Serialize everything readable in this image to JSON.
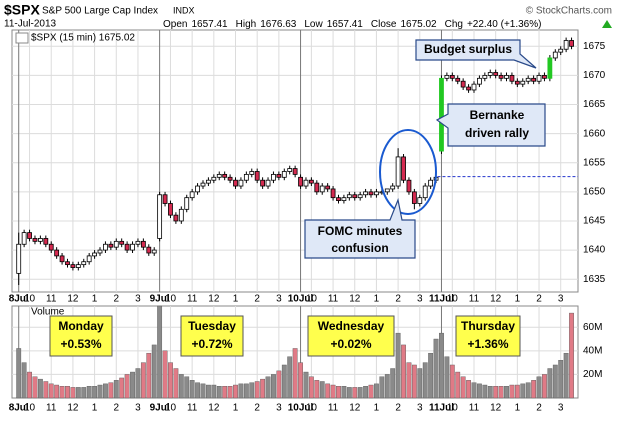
{
  "header": {
    "symbol": "$SPX",
    "name": "S&P 500 Large Cap Index",
    "exchange": "INDX",
    "date": "11-Jul-2013",
    "copyright": "© StockCharts.com",
    "quote": [
      {
        "label": "Open",
        "value": "1657.41"
      },
      {
        "label": "High",
        "value": "1676.63"
      },
      {
        "label": "Low",
        "value": "1657.41"
      },
      {
        "label": "Close",
        "value": "1675.02"
      },
      {
        "label": "Chg",
        "value": "+22.40 (+1.36%)"
      }
    ]
  },
  "annotations": {
    "budget": "Budget surplus",
    "bernanke": [
      "Bernanke",
      "driven rally"
    ],
    "fomc": [
      "FOMC minutes",
      "confusion"
    ]
  },
  "day_notes": [
    {
      "day": "Monday",
      "change": "+0.53%"
    },
    {
      "day": "Tuesday",
      "change": "+0.72%"
    },
    {
      "day": "Wednesday",
      "change": "+0.02%"
    },
    {
      "day": "Thursday",
      "change": "+1.36%"
    }
  ],
  "chart_data": [
    {
      "type": "candlestick",
      "legend": "$SPX (15 min) 1675.02",
      "up_color": "#ffffff",
      "down_color": "#d42a50",
      "highlight_color": "#22c822",
      "highlight": [
        78,
        98
      ],
      "prev_close": 1652.62,
      "prev_close_color": "#2233cc",
      "categories": [
        "8Jul",
        null,
        "10",
        null,
        null,
        null,
        "11",
        null,
        null,
        null,
        "12",
        null,
        null,
        null,
        "1",
        null,
        null,
        null,
        "2",
        null,
        null,
        null,
        "3",
        null,
        null,
        null,
        "9Jul",
        null,
        "10",
        null,
        null,
        null,
        "11",
        null,
        null,
        null,
        "12",
        null,
        null,
        null,
        "1",
        null,
        null,
        null,
        "2",
        null,
        null,
        null,
        "3",
        null,
        null,
        null,
        "10Jul",
        null,
        "10",
        null,
        null,
        null,
        "11",
        null,
        null,
        null,
        "12",
        null,
        null,
        null,
        "1",
        null,
        null,
        null,
        "2",
        null,
        null,
        null,
        "3",
        null,
        null,
        null,
        "11Jul",
        null,
        "10",
        null,
        null,
        null,
        "11",
        null,
        null,
        null,
        "12",
        null,
        null,
        null,
        "1",
        null,
        null,
        null,
        "2",
        null,
        null,
        null,
        "3",
        null,
        null
      ],
      "open": [
        1636,
        1641,
        1643,
        1642,
        1641.5,
        1642,
        1641,
        1640,
        1639,
        1638,
        1637.5,
        1637,
        1637.5,
        1638,
        1639,
        1639.5,
        1640,
        1641,
        1640.5,
        1641.5,
        1641,
        1640,
        1641,
        1641.5,
        1640.5,
        1639.5,
        1642,
        1649.5,
        1648,
        1646,
        1645,
        1647,
        1649,
        1650,
        1651,
        1651.5,
        1652,
        1652.5,
        1653,
        1652.5,
        1652,
        1651,
        1652,
        1653,
        1653.5,
        1652,
        1651,
        1652,
        1653,
        1652.5,
        1653.5,
        1654,
        1652.5,
        1651,
        1652,
        1651.5,
        1650,
        1651,
        1650.5,
        1649,
        1648.5,
        1649,
        1649.5,
        1649,
        1649.5,
        1650,
        1649.5,
        1650,
        1650,
        1650.5,
        1651,
        1656,
        1652,
        1650,
        1648,
        1649,
        1651,
        1652,
        1657,
        1669.5,
        1670,
        1669.5,
        1669,
        1668,
        1667.5,
        1668.5,
        1669.5,
        1670,
        1670.5,
        1670,
        1669.5,
        1670,
        1669,
        1668.5,
        1669,
        1669.5,
        1669,
        1670,
        1669.5,
        1673,
        1674,
        1674.5,
        1676
      ],
      "high": [
        1643,
        1643.5,
        1643.5,
        1642.5,
        1642.5,
        1642.5,
        1641.5,
        1640.5,
        1639.5,
        1638.5,
        1638,
        1638,
        1638.5,
        1639.5,
        1640,
        1640.5,
        1641.5,
        1641.5,
        1642,
        1642,
        1641.5,
        1641.5,
        1642,
        1642,
        1641,
        1640.5,
        1650,
        1650,
        1648.5,
        1646.5,
        1647.5,
        1649.5,
        1650.5,
        1651.5,
        1652,
        1652.5,
        1653,
        1653.5,
        1653.5,
        1653,
        1652.5,
        1652.5,
        1653.5,
        1654,
        1654,
        1652.5,
        1652.5,
        1653.5,
        1653.5,
        1654,
        1654.5,
        1654.5,
        1653,
        1652.5,
        1652.5,
        1652,
        1651.5,
        1651.5,
        1651,
        1649.5,
        1649.5,
        1650,
        1650,
        1650,
        1650.5,
        1650.5,
        1650.5,
        1650.5,
        1650.5,
        1651.5,
        1657.5,
        1656.5,
        1652.5,
        1650.5,
        1649.5,
        1651.5,
        1652.5,
        1653,
        1670,
        1670.5,
        1670.5,
        1670,
        1669.5,
        1668.5,
        1669,
        1670,
        1670.5,
        1671,
        1671,
        1670.5,
        1670.5,
        1670.5,
        1669.5,
        1669.5,
        1670,
        1670,
        1670.5,
        1670.5,
        1673.5,
        1674.5,
        1675,
        1676.5,
        1676.5
      ],
      "low": [
        1634,
        1640.5,
        1641.5,
        1641,
        1641,
        1640.5,
        1639.5,
        1638.5,
        1637.5,
        1637,
        1636.5,
        1636.5,
        1637,
        1637.5,
        1638.5,
        1639,
        1639.5,
        1640,
        1640,
        1640.5,
        1639.5,
        1639.5,
        1640.5,
        1640,
        1639,
        1639,
        1641.5,
        1647.5,
        1645.5,
        1644.5,
        1644.5,
        1646.5,
        1648.5,
        1649.5,
        1650.5,
        1651,
        1651.5,
        1652,
        1652,
        1651.5,
        1650.5,
        1650.5,
        1651.5,
        1652.5,
        1651.5,
        1650.5,
        1650.5,
        1651.5,
        1652,
        1652,
        1653,
        1652.5,
        1650.5,
        1650.5,
        1651,
        1649.5,
        1649.5,
        1650,
        1648.5,
        1648,
        1648,
        1648.5,
        1648.5,
        1648.5,
        1649,
        1649,
        1649,
        1649.5,
        1649.5,
        1650,
        1650.5,
        1651.5,
        1649.5,
        1647,
        1647.5,
        1648.5,
        1650.5,
        1651.5,
        1656.5,
        1669,
        1669,
        1668.5,
        1667.5,
        1667,
        1667,
        1668,
        1669,
        1669.5,
        1669.5,
        1669,
        1669,
        1668.5,
        1668,
        1668,
        1668.5,
        1668.5,
        1668.5,
        1669,
        1669,
        1672.5,
        1673.5,
        1674,
        1674.5
      ],
      "close": [
        1641,
        1643,
        1642,
        1641.5,
        1642,
        1641,
        1640,
        1639,
        1638,
        1637.5,
        1637,
        1637.5,
        1638,
        1639,
        1639.5,
        1640,
        1641,
        1640.5,
        1641.5,
        1641,
        1640,
        1641,
        1641.5,
        1640.5,
        1639.5,
        1640,
        1649.5,
        1648,
        1646,
        1645,
        1647,
        1649,
        1650,
        1651,
        1651.5,
        1652,
        1652.5,
        1653,
        1652.5,
        1652,
        1651,
        1652,
        1653,
        1653.5,
        1652,
        1651,
        1652,
        1653,
        1652.5,
        1653.5,
        1654,
        1653,
        1651,
        1652,
        1651.5,
        1650,
        1651,
        1650.5,
        1649,
        1648.5,
        1649,
        1649.5,
        1649,
        1649.5,
        1650,
        1649.5,
        1650,
        1650,
        1650.5,
        1651,
        1656,
        1652,
        1650,
        1648,
        1649,
        1651,
        1652,
        1652.5,
        1669.5,
        1670,
        1669.5,
        1669,
        1668,
        1667.5,
        1668.5,
        1669.5,
        1670,
        1670.5,
        1670,
        1669.5,
        1670,
        1669,
        1668.5,
        1669,
        1669.5,
        1669,
        1670,
        1669.5,
        1673,
        1674,
        1674.5,
        1676,
        1675
      ],
      "ylim": [
        1632.8,
        1677.8
      ],
      "yticks": [
        1635,
        1640,
        1645,
        1650,
        1655,
        1660,
        1665,
        1670,
        1675
      ],
      "grid": true
    },
    {
      "type": "volume",
      "legend": "Volume",
      "up_color": "#8a8a8a",
      "down_color": "#e07a86",
      "values": [
        42,
        30,
        22,
        18,
        16,
        14,
        12,
        11,
        10,
        10,
        9,
        9,
        9,
        10,
        10,
        11,
        12,
        13,
        15,
        17,
        20,
        22,
        25,
        30,
        38,
        45,
        78,
        40,
        30,
        25,
        20,
        18,
        15,
        13,
        12,
        11,
        11,
        10,
        10,
        10,
        11,
        12,
        12,
        13,
        14,
        16,
        18,
        20,
        23,
        28,
        35,
        42,
        30,
        22,
        18,
        15,
        14,
        12,
        11,
        10,
        10,
        9,
        9,
        9,
        10,
        11,
        12,
        18,
        20,
        25,
        55,
        45,
        30,
        28,
        25,
        30,
        38,
        50,
        55,
        35,
        28,
        22,
        18,
        15,
        13,
        12,
        11,
        10,
        10,
        10,
        10,
        11,
        11,
        12,
        13,
        15,
        18,
        20,
        25,
        28,
        32,
        38,
        72
      ],
      "ylim": [
        0,
        78
      ],
      "yticks": [
        {
          "value": 20,
          "label": "20M"
        },
        {
          "value": 40,
          "label": "40M"
        },
        {
          "value": 60,
          "label": "60M"
        }
      ],
      "grid": true
    }
  ]
}
